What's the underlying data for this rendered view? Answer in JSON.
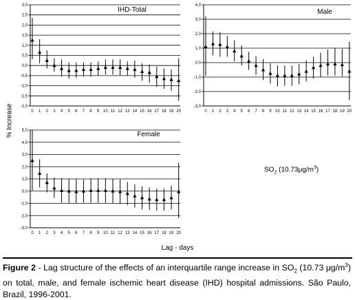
{
  "y_axis_label": "% Increase",
  "x_axis_label": "Lag - days",
  "pollutant_label": {
    "main": "SO",
    "sub": "2",
    "rest": " (10.73",
    "unit": "μg/m",
    "sup": "3",
    "close": ")"
  },
  "caption": {
    "label": "Figure 2",
    "text_1": " - Lag structure of the effects of an interquartile range increase in SO",
    "sub": "2",
    "text_2": " (10.73 μg/m",
    "sup": "3",
    "text_3": ") on total, male, and female ischemic heart disease (IHD) hospital admissions. São Paulo, Brazil, 1996-2001."
  },
  "chart_data": [
    {
      "type": "scatter",
      "title": "IHD-Total",
      "x": [
        0,
        1,
        2,
        3,
        4,
        5,
        6,
        7,
        8,
        9,
        10,
        11,
        12,
        13,
        14,
        15,
        16,
        17,
        18,
        19,
        20
      ],
      "y": [
        1.25,
        0.65,
        0.25,
        0.0,
        -0.15,
        -0.25,
        -0.25,
        -0.2,
        -0.2,
        -0.15,
        -0.1,
        -0.1,
        -0.1,
        -0.15,
        -0.2,
        -0.3,
        -0.35,
        -0.55,
        -0.65,
        -0.7,
        -0.75
      ],
      "lower": [
        0.3,
        0.1,
        -0.15,
        -0.3,
        -0.55,
        -0.65,
        -0.6,
        -0.55,
        -0.55,
        -0.5,
        -0.45,
        -0.45,
        -0.5,
        -0.5,
        -0.6,
        -0.75,
        -0.85,
        -1.05,
        -1.15,
        -1.25,
        -1.75
      ],
      "upper": [
        2.35,
        1.3,
        0.75,
        0.35,
        0.3,
        0.15,
        0.15,
        0.15,
        0.15,
        0.2,
        0.3,
        0.3,
        0.3,
        0.2,
        0.25,
        0.1,
        0.05,
        -0.05,
        -0.15,
        -0.2,
        0.35
      ],
      "ylim": [
        -2.0,
        3.0
      ],
      "yticks": [
        "3,0",
        "2,5",
        "2,0",
        "1,5",
        "1,0",
        "0,5",
        "0,0",
        "-0,5",
        "-1,0",
        "-1,5",
        "-2,0"
      ],
      "grid": true
    },
    {
      "type": "scatter",
      "title": "Male",
      "x": [
        0,
        1,
        2,
        3,
        4,
        5,
        6,
        7,
        8,
        9,
        10,
        11,
        12,
        13,
        14,
        15,
        16,
        17,
        18,
        19,
        20
      ],
      "y": [
        1.1,
        1.3,
        1.25,
        1.1,
        0.8,
        0.45,
        0.1,
        -0.2,
        -0.5,
        -0.75,
        -0.9,
        -0.9,
        -0.9,
        -0.8,
        -0.6,
        -0.35,
        -0.2,
        -0.1,
        -0.1,
        -0.15,
        -0.6
      ],
      "lower": [
        -0.9,
        0.5,
        0.4,
        0.4,
        0.1,
        -0.2,
        -0.5,
        -0.85,
        -1.2,
        -1.45,
        -1.65,
        -1.6,
        -1.6,
        -1.5,
        -1.3,
        -1.1,
        -1.0,
        -0.9,
        -0.9,
        -0.95,
        -2.6
      ],
      "upper": [
        3.2,
        2.15,
        2.1,
        1.85,
        1.55,
        1.2,
        0.75,
        0.45,
        0.25,
        -0.05,
        -0.2,
        -0.2,
        -0.2,
        -0.1,
        0.15,
        0.4,
        0.7,
        0.9,
        1.0,
        0.95,
        1.45
      ],
      "ylim": [
        -3.0,
        4.0
      ],
      "yticks": [
        "4,0",
        "3,0",
        "2,0",
        "1,0",
        "0,0",
        "-1,0",
        "-2,0",
        "-3,0"
      ],
      "grid": true
    },
    {
      "type": "scatter",
      "title": "Female",
      "x": [
        0,
        1,
        2,
        3,
        4,
        5,
        6,
        7,
        8,
        9,
        10,
        11,
        12,
        13,
        14,
        15,
        16,
        17,
        18,
        19,
        20
      ],
      "y": [
        2.5,
        1.45,
        0.7,
        0.25,
        0.05,
        0.0,
        -0.05,
        0.0,
        0.05,
        0.05,
        0.05,
        0.0,
        -0.05,
        -0.2,
        -0.4,
        -0.55,
        -0.65,
        -0.7,
        -0.7,
        -0.55,
        -0.05
      ],
      "lower": [
        0.05,
        0.3,
        -0.1,
        -0.55,
        -0.95,
        -1.0,
        -1.0,
        -0.95,
        -0.95,
        -0.95,
        -0.95,
        -1.0,
        -1.05,
        -1.15,
        -1.35,
        -1.5,
        -1.55,
        -1.6,
        -1.6,
        -1.5,
        -2.2
      ],
      "upper": [
        5.0,
        2.6,
        1.45,
        1.1,
        1.05,
        1.0,
        1.0,
        0.95,
        1.05,
        1.05,
        1.05,
        1.0,
        0.95,
        0.75,
        0.55,
        0.4,
        0.3,
        0.2,
        0.2,
        0.45,
        2.3
      ],
      "ylim": [
        -3.0,
        5.0
      ],
      "yticks": [
        "5,0",
        "4,0",
        "3,0",
        "2,0",
        "1,0",
        "0,0",
        "-1,0",
        "-2,0",
        "-3,0"
      ],
      "grid": true
    }
  ]
}
